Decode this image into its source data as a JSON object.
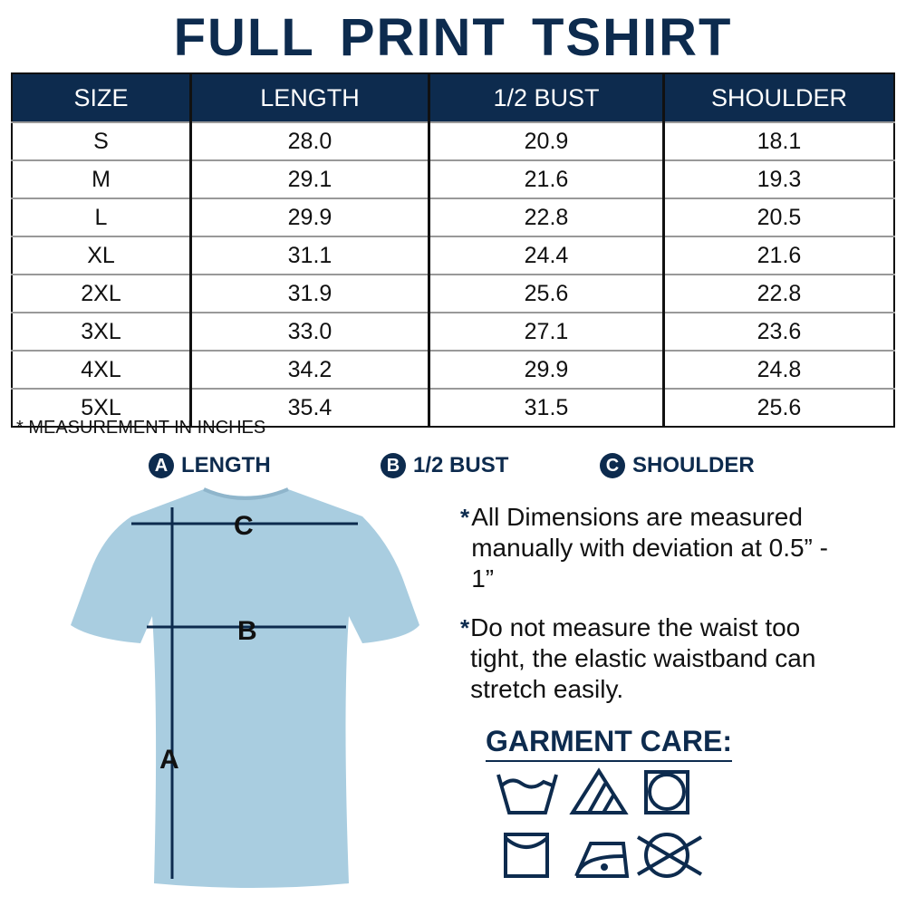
{
  "title": "FULL PRINT TSHIRT",
  "table": {
    "headers": [
      "SIZE",
      "LENGTH",
      "1/2 BUST",
      "SHOULDER"
    ],
    "rows": [
      [
        "S",
        "28.0",
        "20.9",
        "18.1"
      ],
      [
        "M",
        "29.1",
        "21.6",
        "19.3"
      ],
      [
        "L",
        "29.9",
        "22.8",
        "20.5"
      ],
      [
        "XL",
        "31.1",
        "24.4",
        "21.6"
      ],
      [
        "2XL",
        "31.9",
        "25.6",
        "22.8"
      ],
      [
        "3XL",
        "33.0",
        "27.1",
        "23.6"
      ],
      [
        "4XL",
        "34.2",
        "29.9",
        "24.8"
      ],
      [
        "5XL",
        "35.4",
        "31.5",
        "25.6"
      ]
    ]
  },
  "note": "* MEASUREMENT IN INCHES",
  "legend": [
    {
      "letter": "A",
      "label": "LENGTH"
    },
    {
      "letter": "B",
      "label": "1/2 BUST"
    },
    {
      "letter": "C",
      "label": "SHOULDER"
    }
  ],
  "diagram": {
    "shirt_color": "#a9cde0",
    "labels": {
      "a": "A",
      "b": "B",
      "c": "C"
    }
  },
  "bullets": [
    "All Dimensions are measured manually with deviation at 0.5” - 1”",
    "Do not measure the waist too tight, the elastic waistband can stretch easily."
  ],
  "care": {
    "title": "GARMENT CARE:",
    "icons": [
      "hand-wash-icon",
      "bleach-icon",
      "tumble-dry-icon",
      "line-dry-icon",
      "iron-icon",
      "do-not-dry-clean-icon"
    ]
  },
  "colors": {
    "navy": "#0d2b4e"
  }
}
